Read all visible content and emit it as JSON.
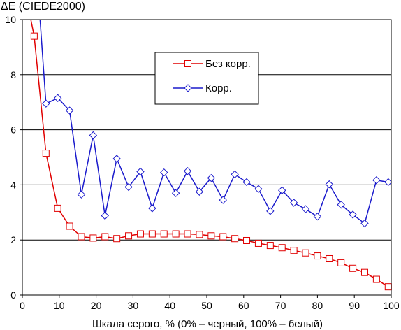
{
  "chart_data": {
    "type": "line",
    "ylabel": "ΔE (CIEDE2000)",
    "xlabel": "Шкала серого, % (0% – черный, 100% – белый)",
    "xlim": [
      0,
      100
    ],
    "ylim": [
      0,
      10
    ],
    "xticks": [
      "0",
      "10",
      "20",
      "30",
      "40",
      "50",
      "60",
      "70",
      "80",
      "90",
      "100"
    ],
    "yticks": [
      "0",
      "2",
      "4",
      "6",
      "8",
      "10"
    ],
    "grid": "horizontal",
    "legend_position": "top-center",
    "series": [
      {
        "name": "Без корр.",
        "color": "#e00000",
        "marker": "square",
        "clip_start": {
          "x": 2.3,
          "y": 10
        },
        "x": [
          3.2,
          6.4,
          9.6,
          12.8,
          16.0,
          19.2,
          22.4,
          25.6,
          28.8,
          32.0,
          35.2,
          38.4,
          41.6,
          44.8,
          48.0,
          51.2,
          54.4,
          57.6,
          60.8,
          64.0,
          67.2,
          70.4,
          73.6,
          76.8,
          80.0,
          83.2,
          86.4,
          89.6,
          92.8,
          96.0,
          99.2
        ],
        "values": [
          9.4,
          5.15,
          3.15,
          2.5,
          2.12,
          2.07,
          2.12,
          2.05,
          2.15,
          2.22,
          2.22,
          2.22,
          2.22,
          2.22,
          2.2,
          2.15,
          2.12,
          2.05,
          1.98,
          1.88,
          1.8,
          1.72,
          1.62,
          1.53,
          1.42,
          1.32,
          1.17,
          0.97,
          0.82,
          0.57,
          0.3
        ]
      },
      {
        "name": "Корр.",
        "color": "#1a1acc",
        "marker": "diamond",
        "clip_start": {
          "x": 4.8,
          "y": 10
        },
        "x": [
          6.4,
          9.6,
          12.8,
          16.0,
          19.2,
          22.4,
          25.6,
          28.8,
          32.0,
          35.2,
          38.4,
          41.6,
          44.8,
          48.0,
          51.2,
          54.4,
          57.6,
          60.8,
          64.0,
          67.2,
          70.4,
          73.6,
          76.8,
          80.0,
          83.2,
          86.4,
          89.6,
          92.8,
          96.0,
          99.2
        ],
        "values": [
          6.95,
          7.15,
          6.7,
          3.65,
          5.8,
          2.88,
          4.95,
          3.92,
          4.48,
          3.15,
          4.45,
          3.7,
          4.5,
          3.75,
          4.25,
          3.45,
          4.38,
          4.1,
          3.85,
          3.05,
          3.8,
          3.35,
          3.12,
          2.85,
          4.02,
          3.28,
          2.92,
          2.6,
          4.17,
          4.1
        ]
      }
    ]
  }
}
